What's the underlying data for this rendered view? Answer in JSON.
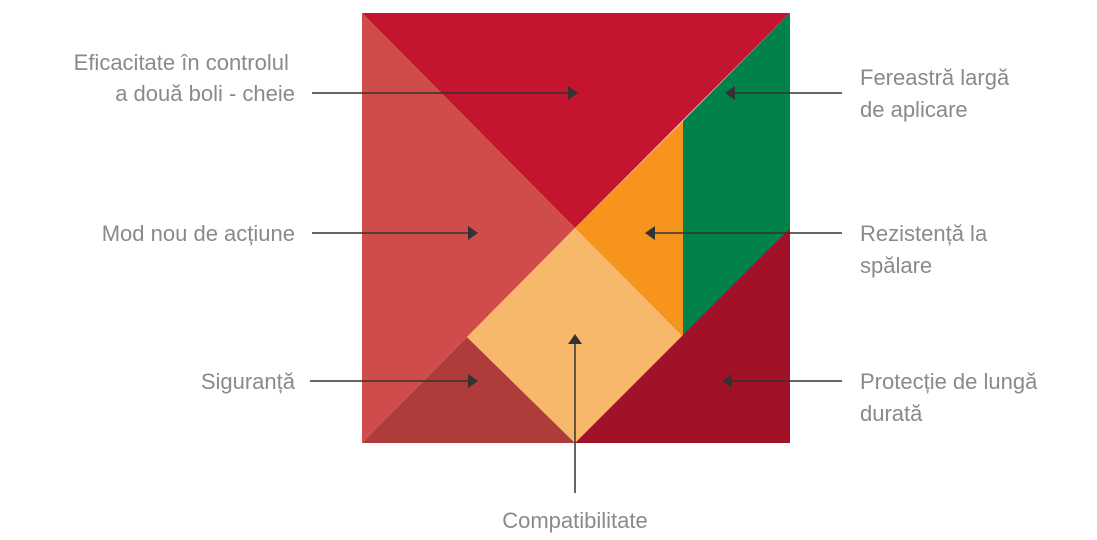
{
  "labels": {
    "efficacy": [
      "Eficacitate în controlul",
      "a două boli - cheie"
    ],
    "mode": [
      "Mod nou de acțiune"
    ],
    "safety": [
      "Siguranță"
    ],
    "compat": [
      "Compatibilitate"
    ],
    "window": [
      "Fereastră largă",
      "de aplicare"
    ],
    "wash": [
      "Rezistență la",
      "spălare"
    ],
    "protection": [
      "Protecție de lungă",
      "durată"
    ]
  },
  "colors": {
    "top_triangle": "#c4142e",
    "left_triangle": "#cf4c4b",
    "small_left_triangle": "#b03b3b",
    "square": "#f8b86c",
    "small_orange_triangle": "#f7941e",
    "parallelogram": "#00824a",
    "bottom_right_triangle": "#a11127",
    "text": "#8a8a8a",
    "line": "#333333"
  }
}
